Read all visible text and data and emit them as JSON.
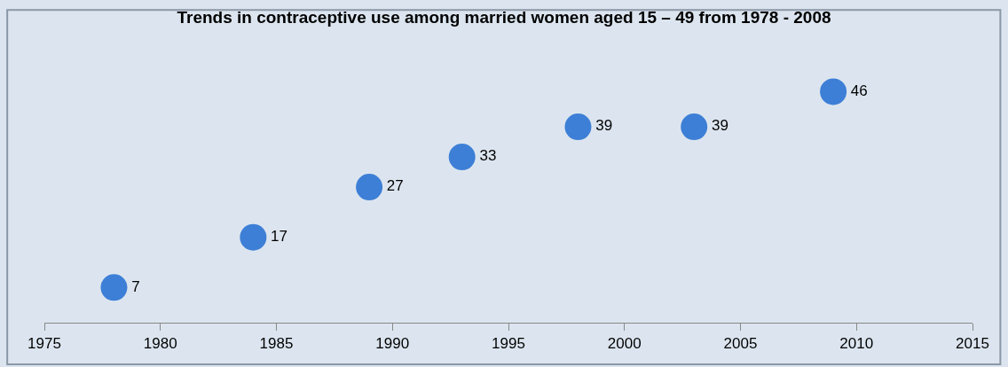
{
  "chart_data": {
    "type": "scatter",
    "title": "Trends in contraceptive use among married women aged 15 – 49 from 1978 - 2008",
    "x": [
      1978,
      1984,
      1989,
      1993,
      1998,
      2003,
      2009
    ],
    "values": [
      7,
      17,
      27,
      33,
      39,
      39,
      46
    ],
    "color": "#3d7fd6",
    "marker": "circle",
    "data_labels": true,
    "xlim": [
      1975,
      2015
    ],
    "xticks": [
      1975,
      1980,
      1985,
      1990,
      1995,
      2000,
      2005,
      2010,
      2015
    ],
    "tick_labels": "x",
    "grid": false
  }
}
